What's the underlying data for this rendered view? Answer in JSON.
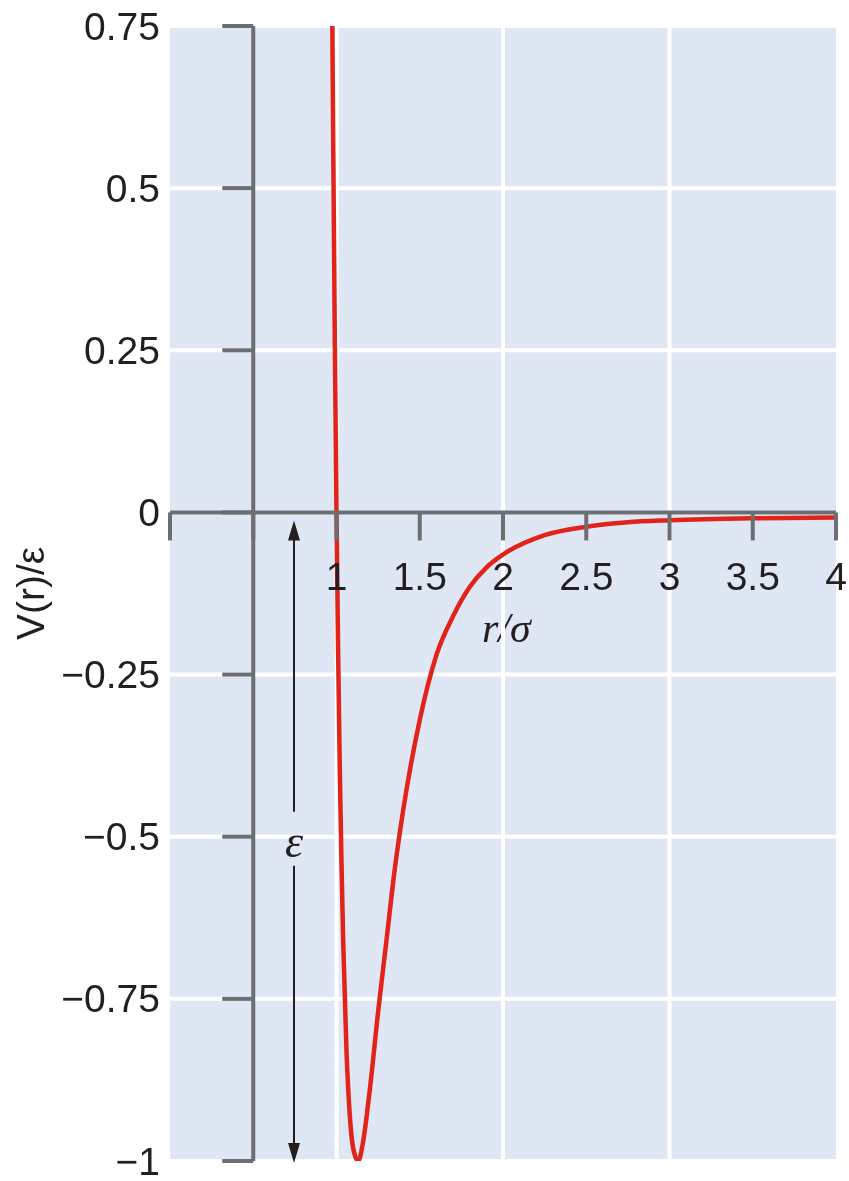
{
  "chart_data": {
    "type": "line",
    "xlabel": "r/σ",
    "ylabel": "V(r)/ε",
    "x": [
      0.975,
      0.98,
      0.99,
      1.0,
      1.01,
      1.02,
      1.03,
      1.04,
      1.06,
      1.08,
      1.1,
      1.13,
      1.16,
      1.2,
      1.25,
      1.3,
      1.35,
      1.4,
      1.5,
      1.6,
      1.7,
      1.8,
      1.9,
      2.0,
      2.25,
      2.5,
      2.75,
      3.0,
      3.5,
      4.0
    ],
    "series": [
      {
        "color": "#e2231a",
        "values": [
          0.75,
          0.58,
          0.26,
          0.0,
          -0.22,
          -0.4,
          -0.54,
          -0.66,
          -0.83,
          -0.93,
          -0.98,
          -1.0,
          -0.97,
          -0.89,
          -0.77,
          -0.66,
          -0.55,
          -0.46,
          -0.32,
          -0.22,
          -0.16,
          -0.115,
          -0.085,
          -0.065,
          -0.035,
          -0.022,
          -0.015,
          -0.012,
          -0.009,
          -0.008
        ]
      }
    ],
    "xlim": [
      0,
      4
    ],
    "ylim": [
      -1,
      0.75
    ],
    "xticks": [
      {
        "value": 0,
        "label": null
      },
      {
        "value": 0.5,
        "label": null
      },
      1,
      1.5,
      2,
      2.5,
      3,
      3.5,
      4
    ],
    "yticks": [
      {
        "value": -1,
        "label": "−1"
      },
      {
        "value": -0.75,
        "label": "−0.75"
      },
      {
        "value": -0.5,
        "label": "−0.5"
      },
      {
        "value": -0.25,
        "label": "−0.25"
      },
      0,
      0.25,
      0.5,
      0.75
    ],
    "grid": "y",
    "ref_lines": [
      {
        "axis": "x",
        "value": 1,
        "color": "#ffffff"
      },
      {
        "axis": "x",
        "value": 2,
        "color": "#ffffff"
      },
      {
        "axis": "x",
        "value": 3,
        "color": "#ffffff"
      },
      {
        "axis": "x",
        "value": 0.5,
        "color": "#6d6e71"
      }
    ],
    "annotations": [
      "ε"
    ]
  }
}
